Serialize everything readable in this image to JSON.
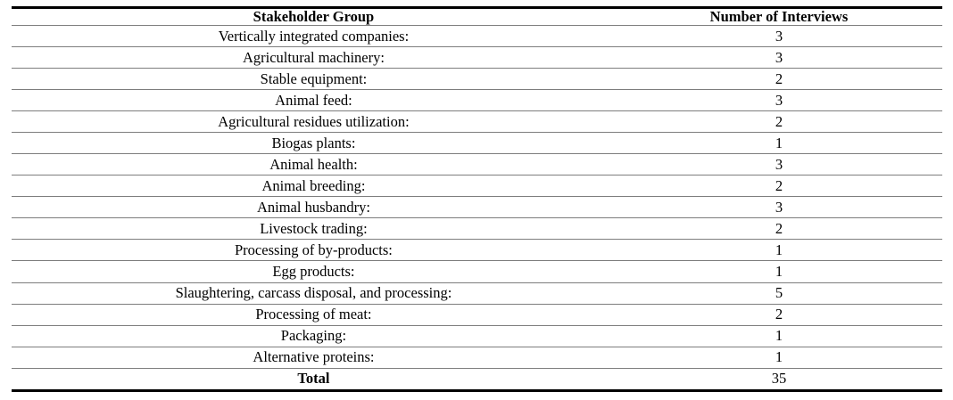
{
  "table": {
    "columns": [
      "Stakeholder Group",
      "Number of Interviews"
    ],
    "rows": [
      {
        "group": "Vertically integrated companies:",
        "count": 3
      },
      {
        "group": "Agricultural machinery:",
        "count": 3
      },
      {
        "group": "Stable equipment:",
        "count": 2
      },
      {
        "group": "Animal feed:",
        "count": 3
      },
      {
        "group": "Agricultural residues utilization:",
        "count": 2
      },
      {
        "group": "Biogas plants:",
        "count": 1
      },
      {
        "group": "Animal health:",
        "count": 3
      },
      {
        "group": "Animal breeding:",
        "count": 2
      },
      {
        "group": "Animal husbandry:",
        "count": 3
      },
      {
        "group": "Livestock trading:",
        "count": 2
      },
      {
        "group": "Processing of by-products:",
        "count": 1
      },
      {
        "group": "Egg products:",
        "count": 1
      },
      {
        "group": "Slaughtering, carcass disposal, and processing:",
        "count": 5
      },
      {
        "group": "Processing of meat:",
        "count": 2
      },
      {
        "group": "Packaging:",
        "count": 1
      },
      {
        "group": "Alternative proteins:",
        "count": 1
      }
    ],
    "total_label": "Total",
    "total_value": 35
  },
  "colors": {
    "heavy_border": "#000000",
    "row_rule": "#7d7d7d",
    "text": "#000000",
    "background": "#ffffff"
  }
}
